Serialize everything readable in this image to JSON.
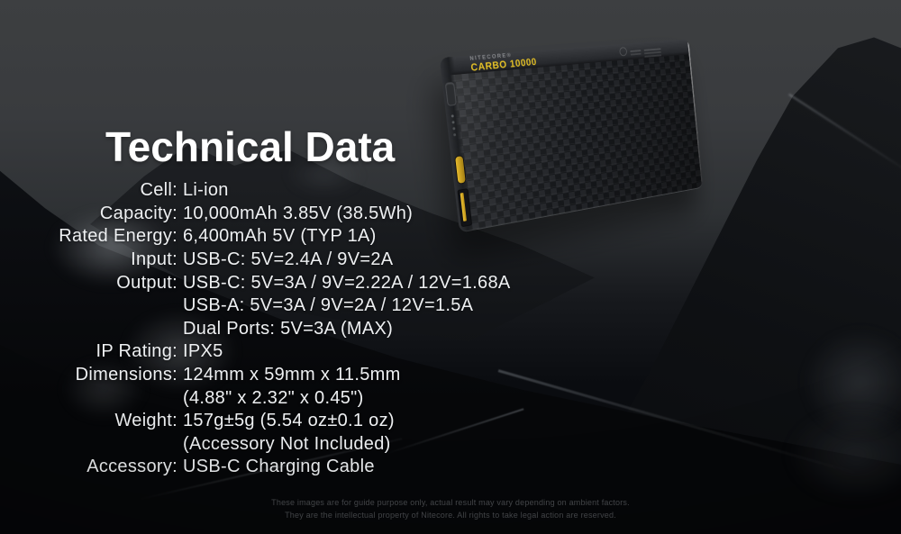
{
  "title": "Technical Data",
  "specs": [
    {
      "label": "Cell:",
      "value": "Li-ion"
    },
    {
      "label": "Capacity:",
      "value": "10,000mAh 3.85V (38.5Wh)"
    },
    {
      "label": "Rated Energy:",
      "value": "6,400mAh 5V (TYP 1A)"
    },
    {
      "label": "Input:",
      "value": "USB-C: 5V=2.4A / 9V=2A"
    },
    {
      "label": "Output:",
      "value": "USB-C: 5V=3A / 9V=2.22A / 12V=1.68A"
    },
    {
      "label": "",
      "value": "USB-A: 5V=3A / 9V=2A / 12V=1.5A"
    },
    {
      "label": "",
      "value": "Dual Ports: 5V=3A (MAX)"
    },
    {
      "label": "IP Rating:",
      "value": "IPX5"
    },
    {
      "label": "Dimensions:",
      "value": "124mm x 59mm x 11.5mm"
    },
    {
      "label": "",
      "value": "(4.88\" x 2.32\" x 0.45\")"
    },
    {
      "label": "Weight:",
      "value": "157g±5g (5.54 oz±0.1 oz)"
    },
    {
      "label": "",
      "value": "(Accessory Not Included)"
    },
    {
      "label": "Accessory:",
      "value": "USB-C Charging Cable"
    }
  ],
  "product": {
    "brand": "NITECORE®",
    "model": "CARBO 10000"
  },
  "footer": {
    "line1": "These images are for guide purpose only, actual result may vary depending on ambient factors.",
    "line2": "They are the intellectual property of Nitecore. All rights to take legal action are reserved."
  },
  "colors": {
    "accent_yellow": "#e6c226",
    "text_white": "#eef0f2",
    "sky_gray": "#3d3f41",
    "background_dark": "#07080b"
  }
}
